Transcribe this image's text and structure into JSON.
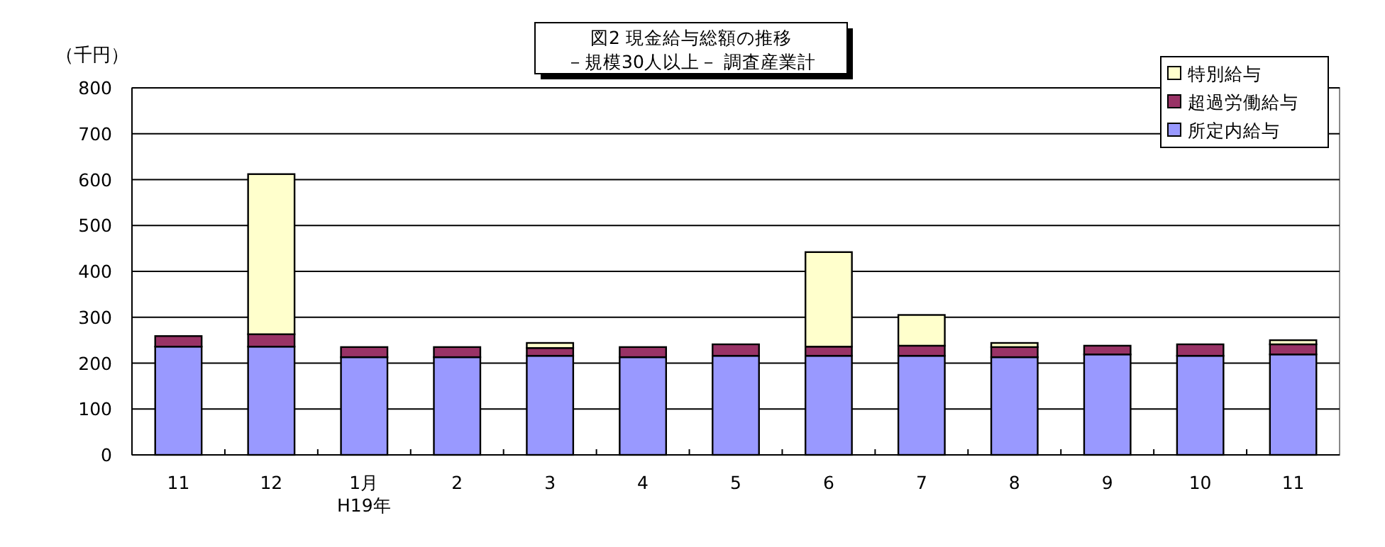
{
  "chart_data": {
    "type": "bar",
    "stacked": true,
    "title": "図2  現金給与総額の推移",
    "subtitle": "－規模30人以上－  調査産業計",
    "ylabel": "（千円）",
    "categories": [
      "11",
      "12",
      "1月\nH19年",
      "2",
      "3",
      "4",
      "5",
      "6",
      "7",
      "8",
      "9",
      "10",
      "11"
    ],
    "series": [
      {
        "name": "所定内給与",
        "color": "#9999ff",
        "values": [
          236,
          236,
          213,
          213,
          216,
          213,
          216,
          216,
          216,
          213,
          219,
          216,
          219
        ]
      },
      {
        "name": "超過労働給与",
        "color": "#993366",
        "values": [
          23,
          27,
          22,
          22,
          17,
          22,
          25,
          20,
          22,
          22,
          19,
          25,
          22
        ]
      },
      {
        "name": "特別給与",
        "color": "#ffffcc",
        "values": [
          0,
          349,
          0,
          0,
          11,
          0,
          0,
          206,
          67,
          9,
          0,
          0,
          9
        ]
      }
    ],
    "ylim": [
      0,
      800
    ],
    "yticks": [
      0,
      100,
      200,
      300,
      400,
      500,
      600,
      700,
      800
    ],
    "grid": "y",
    "legend": "top right"
  }
}
